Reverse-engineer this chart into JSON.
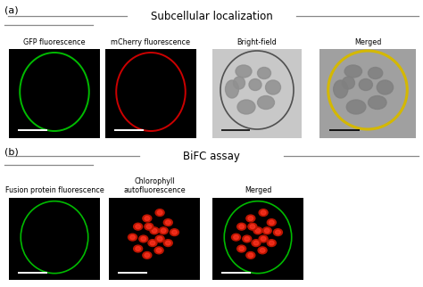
{
  "figure_width": 4.74,
  "figure_height": 3.22,
  "dpi": 100,
  "bg_color": "#ffffff",
  "panel_a_label": "(a)",
  "panel_b_label": "(b)",
  "section_a_title": "Subcellular localization",
  "section_b_title": "BiFC assay",
  "panel_a_labels": [
    "GFP fluorescence",
    "mCherry fluorescence",
    "Bright-field",
    "Merged"
  ],
  "panel_b_labels": [
    "Fusion protein fluorescence",
    "Chlorophyll\nautofluorescence",
    "Merged"
  ],
  "ellipse_color_green": "#00bb00",
  "ellipse_color_red": "#cc0000",
  "line_color": "#888888",
  "title_fontsize": 8.5,
  "label_fontsize": 5.8,
  "panel_label_fontsize": 8
}
